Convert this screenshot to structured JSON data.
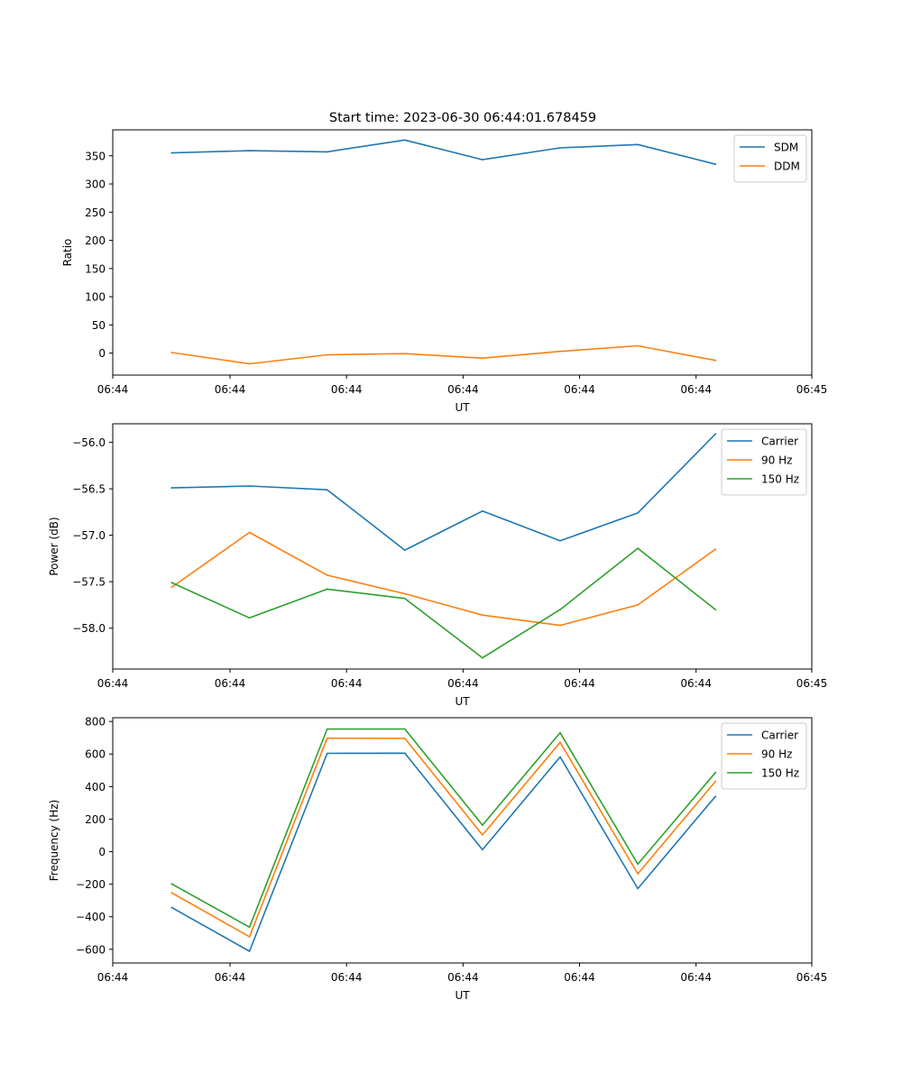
{
  "figure": {
    "title": "Start time: 2023-06-30 06:44:01.678459"
  },
  "chart_data": [
    {
      "type": "line",
      "xlabel": "UT",
      "ylabel": "Ratio",
      "x": [
        1,
        2,
        3,
        4,
        5,
        6,
        7,
        8
      ],
      "xlim": [
        0.24,
        9.24
      ],
      "x_ticks": [
        0.24,
        1.75,
        3.25,
        4.75,
        6.25,
        7.75,
        9.24
      ],
      "x_tick_labels": [
        "06:44",
        "06:44",
        "06:44",
        "06:44",
        "06:44",
        "06:44",
        "06:45"
      ],
      "ylim": [
        -39,
        396
      ],
      "y_ticks": [
        0,
        50,
        100,
        150,
        200,
        250,
        300,
        350
      ],
      "y_tick_labels": [
        "0",
        "50",
        "100",
        "150",
        "200",
        "250",
        "300",
        "350"
      ],
      "legend_position": "top-right",
      "grid": false,
      "series": [
        {
          "name": "SDM",
          "color": "#1f77b4",
          "values": [
            355,
            359,
            357,
            378,
            343,
            364,
            370,
            335
          ]
        },
        {
          "name": "DDM",
          "color": "#ff7f0e",
          "values": [
            1,
            -19,
            -3,
            -1,
            -9,
            3,
            13,
            -13
          ]
        }
      ]
    },
    {
      "type": "line",
      "xlabel": "UT",
      "ylabel": "Power (dB)",
      "x": [
        1,
        2,
        3,
        4,
        5,
        6,
        7,
        8
      ],
      "xlim": [
        0.24,
        9.24
      ],
      "x_ticks": [
        0.24,
        1.75,
        3.25,
        4.75,
        6.25,
        7.75,
        9.24
      ],
      "x_tick_labels": [
        "06:44",
        "06:44",
        "06:44",
        "06:44",
        "06:44",
        "06:44",
        "06:45"
      ],
      "ylim": [
        -58.44,
        -55.8
      ],
      "y_ticks": [
        -58.0,
        -57.5,
        -57.0,
        -56.5,
        -56.0
      ],
      "y_tick_labels": [
        "−58.0",
        "−57.5",
        "−57.0",
        "−56.5",
        "−56.0"
      ],
      "legend_position": "top-right",
      "grid": false,
      "series": [
        {
          "name": "Carrier",
          "color": "#1f77b4",
          "values": [
            -56.49,
            -56.47,
            -56.51,
            -57.16,
            -56.74,
            -57.06,
            -56.76,
            -55.91
          ]
        },
        {
          "name": "90 Hz",
          "color": "#ff7f0e",
          "values": [
            -57.56,
            -56.97,
            -57.43,
            -57.63,
            -57.86,
            -57.97,
            -57.75,
            -57.15
          ]
        },
        {
          "name": "150 Hz",
          "color": "#2ca02c",
          "values": [
            -57.51,
            -57.89,
            -57.58,
            -57.68,
            -58.32,
            -57.8,
            -57.14,
            -57.8
          ]
        }
      ]
    },
    {
      "type": "line",
      "xlabel": "UT",
      "ylabel": "Frequency (Hz)",
      "x": [
        1,
        2,
        3,
        4,
        5,
        6,
        7,
        8
      ],
      "xlim": [
        0.24,
        9.24
      ],
      "x_ticks": [
        0.24,
        1.75,
        3.25,
        4.75,
        6.25,
        7.75,
        9.24
      ],
      "x_tick_labels": [
        "06:44",
        "06:44",
        "06:44",
        "06:44",
        "06:44",
        "06:44",
        "06:45"
      ],
      "ylim": [
        -684,
        823
      ],
      "y_ticks": [
        -600,
        -400,
        -200,
        0,
        200,
        400,
        600,
        800
      ],
      "y_tick_labels": [
        "−600",
        "−400",
        "−200",
        "0",
        "200",
        "400",
        "600",
        "800"
      ],
      "legend_position": "top-right",
      "grid": false,
      "series": [
        {
          "name": "Carrier",
          "color": "#1f77b4",
          "values": [
            -343,
            -612,
            604,
            605,
            12,
            582,
            -227,
            340
          ]
        },
        {
          "name": "90 Hz",
          "color": "#ff7f0e",
          "values": [
            -253,
            -523,
            697,
            696,
            103,
            672,
            -136,
            432
          ]
        },
        {
          "name": "150 Hz",
          "color": "#2ca02c",
          "values": [
            -198,
            -464,
            754,
            754,
            163,
            731,
            -77,
            486
          ]
        }
      ]
    }
  ]
}
